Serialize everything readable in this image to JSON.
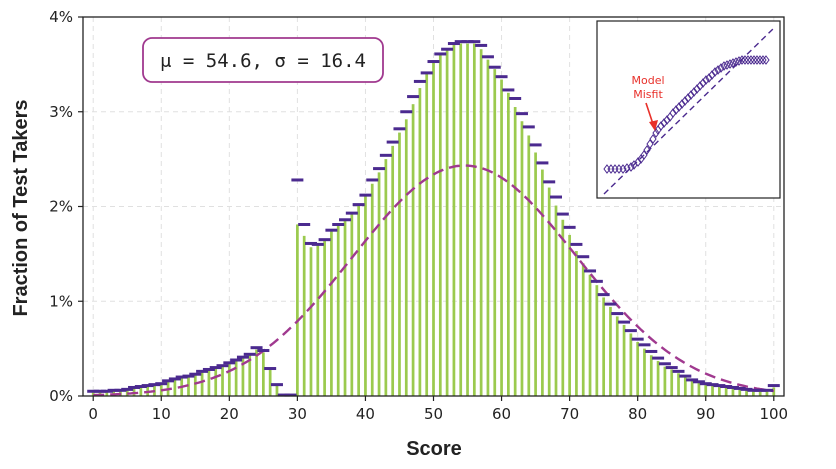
{
  "chart_data": {
    "type": "bar",
    "xlabel": "Score",
    "ylabel": "Fraction of Test Takers",
    "xlim": [
      -1.5,
      101.5
    ],
    "ylim": [
      0,
      0.04
    ],
    "x_ticks": [
      0,
      10,
      20,
      30,
      40,
      50,
      60,
      70,
      80,
      90,
      100
    ],
    "y_ticks": [
      0,
      0.01,
      0.02,
      0.03,
      0.04
    ],
    "y_tick_labels": [
      "0%",
      "1%",
      "2%",
      "3%",
      "4%"
    ],
    "grid": true,
    "series": [
      {
        "kind": "bars",
        "x": [
          0,
          1,
          2,
          3,
          4,
          5,
          6,
          7,
          8,
          9,
          10,
          11,
          12,
          13,
          14,
          15,
          16,
          17,
          18,
          19,
          20,
          21,
          22,
          23,
          24,
          25,
          26,
          27,
          28,
          29,
          30,
          31,
          32,
          33,
          34,
          35,
          36,
          37,
          38,
          39,
          40,
          41,
          42,
          43,
          44,
          45,
          46,
          47,
          48,
          49,
          50,
          51,
          52,
          53,
          54,
          55,
          56,
          57,
          58,
          59,
          60,
          61,
          62,
          63,
          64,
          65,
          66,
          67,
          68,
          69,
          70,
          71,
          72,
          73,
          74,
          75,
          76,
          77,
          78,
          79,
          80,
          81,
          82,
          83,
          84,
          85,
          86,
          87,
          88,
          89,
          90,
          91,
          92,
          93,
          94,
          95,
          96,
          97,
          98,
          99,
          100
        ],
        "values": [
          0.0005,
          0.0005,
          0.0005,
          0.0006,
          0.0006,
          0.0007,
          0.0009,
          0.001,
          0.0011,
          0.0012,
          0.0013,
          0.0016,
          0.0018,
          0.002,
          0.0021,
          0.0023,
          0.0026,
          0.0028,
          0.003,
          0.0032,
          0.0035,
          0.0038,
          0.0041,
          0.0044,
          0.0049,
          0.0046,
          0.0029,
          0.0012,
          0.0001,
          0.0001,
          0.0181,
          0.0169,
          0.0157,
          0.016,
          0.0165,
          0.0175,
          0.0181,
          0.0186,
          0.0193,
          0.0202,
          0.0212,
          0.0224,
          0.0236,
          0.025,
          0.0264,
          0.0278,
          0.0292,
          0.0308,
          0.0325,
          0.0341,
          0.0353,
          0.0361,
          0.0366,
          0.0372,
          0.0372,
          0.0372,
          0.0372,
          0.0366,
          0.0355,
          0.0345,
          0.0334,
          0.032,
          0.0305,
          0.029,
          0.0275,
          0.0257,
          0.0239,
          0.022,
          0.0201,
          0.0186,
          0.017,
          0.0153,
          0.014,
          0.0128,
          0.0117,
          0.0104,
          0.0094,
          0.0084,
          0.0075,
          0.0066,
          0.0057,
          0.005,
          0.0043,
          0.0037,
          0.0031,
          0.0028,
          0.0024,
          0.002,
          0.0016,
          0.0014,
          0.0012,
          0.0011,
          0.001,
          0.0009,
          0.0008,
          0.0007,
          0.0006,
          0.0006,
          0.0005,
          0.0005,
          0.0009
        ]
      },
      {
        "kind": "markers",
        "x": [
          0,
          1,
          2,
          3,
          4,
          5,
          6,
          7,
          8,
          9,
          10,
          11,
          12,
          13,
          14,
          15,
          16,
          17,
          18,
          19,
          20,
          21,
          22,
          23,
          24,
          25,
          26,
          27,
          28,
          29,
          30,
          31,
          32,
          33,
          34,
          35,
          36,
          37,
          38,
          39,
          40,
          41,
          42,
          43,
          44,
          45,
          46,
          47,
          48,
          49,
          50,
          51,
          52,
          53,
          54,
          55,
          56,
          57,
          58,
          59,
          60,
          61,
          62,
          63,
          64,
          65,
          66,
          67,
          68,
          69,
          70,
          71,
          72,
          73,
          74,
          75,
          76,
          77,
          78,
          79,
          80,
          81,
          82,
          83,
          84,
          85,
          86,
          87,
          88,
          89,
          90,
          91,
          92,
          93,
          94,
          95,
          96,
          97,
          98,
          99,
          100
        ],
        "values": [
          0.0005,
          0.0005,
          0.0005,
          0.0006,
          0.0006,
          0.0007,
          0.0009,
          0.001,
          0.0011,
          0.0012,
          0.0013,
          0.0016,
          0.0018,
          0.002,
          0.0021,
          0.0023,
          0.0026,
          0.0028,
          0.003,
          0.0032,
          0.0035,
          0.0038,
          0.0041,
          0.0044,
          0.0051,
          0.0048,
          0.0029,
          0.0012,
          0.0001,
          0.0001,
          0.0228,
          0.0181,
          0.0161,
          0.016,
          0.0165,
          0.0175,
          0.0181,
          0.0186,
          0.0193,
          0.0202,
          0.0212,
          0.0228,
          0.024,
          0.0254,
          0.0268,
          0.0282,
          0.03,
          0.0316,
          0.0332,
          0.0341,
          0.0353,
          0.0361,
          0.0366,
          0.0372,
          0.0374,
          0.0374,
          0.0374,
          0.037,
          0.0358,
          0.0347,
          0.0337,
          0.0323,
          0.0314,
          0.0298,
          0.0284,
          0.0265,
          0.0246,
          0.0226,
          0.021,
          0.0192,
          0.0178,
          0.016,
          0.0147,
          0.0132,
          0.0121,
          0.0107,
          0.0097,
          0.0087,
          0.0078,
          0.0069,
          0.006,
          0.0054,
          0.0047,
          0.004,
          0.0034,
          0.003,
          0.0026,
          0.0021,
          0.0017,
          0.0015,
          0.0013,
          0.0012,
          0.0011,
          0.001,
          0.0009,
          0.0008,
          0.0007,
          0.0006,
          0.0006,
          0.0006,
          0.0011
        ]
      },
      {
        "kind": "normal-curve",
        "mu": 54.6,
        "sigma": 16.4
      }
    ],
    "annotations": {
      "stats_label": "μ = 54.6,  σ = 16.4",
      "inset": {
        "type": "qq-plot",
        "label_line1": "Model",
        "label_line2": "Misfit"
      }
    }
  },
  "colors": {
    "bar": "#9bca4e",
    "marker": "#4b2a8f",
    "curve": "#a0398f",
    "stats_border": "#a0398f",
    "misfit": "#e8302a",
    "grid": "#e0e0e0"
  }
}
